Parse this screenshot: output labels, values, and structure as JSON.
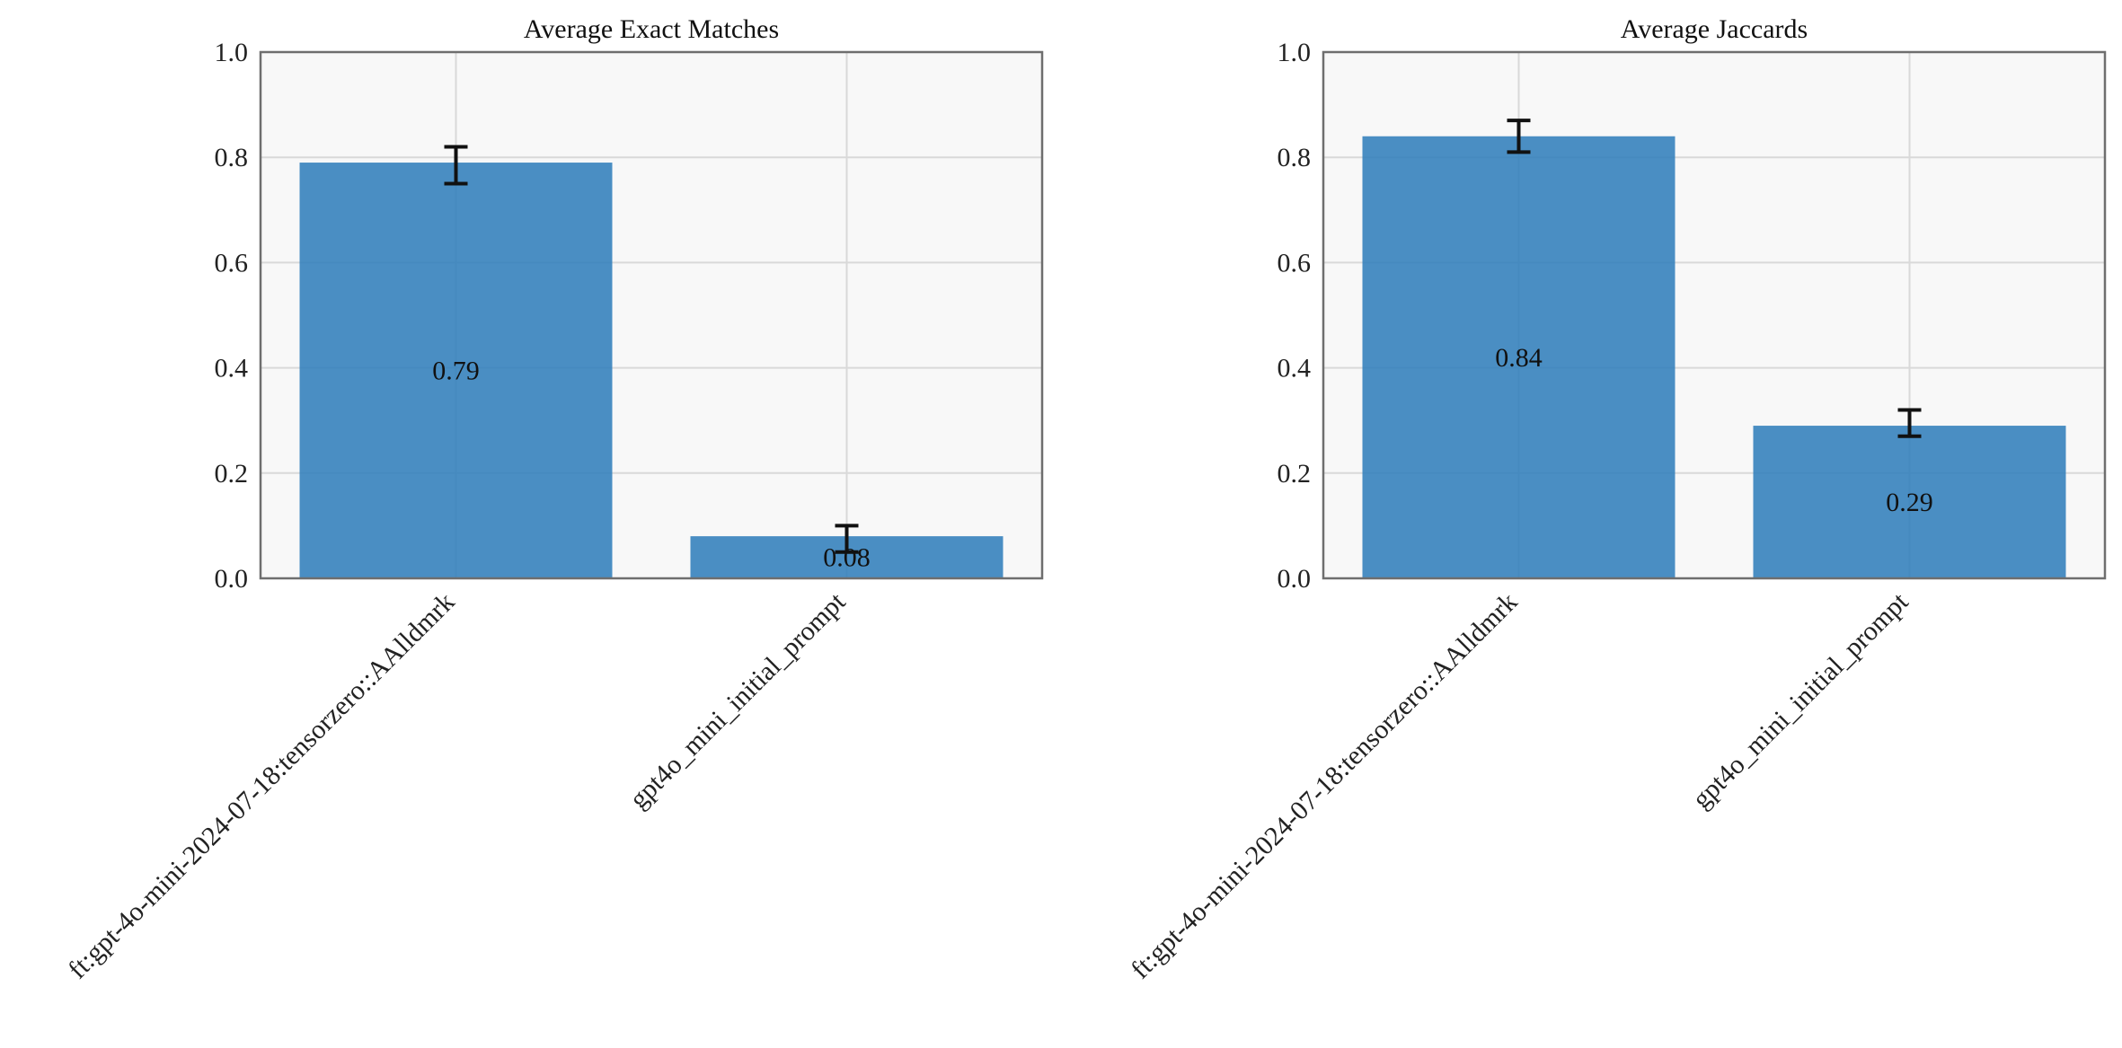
{
  "colors": {
    "bar": "#2b7bba",
    "plot_bg": "#f8f8f8",
    "grid": "#d9d9d9",
    "frame": "#6e6e6e",
    "errorbar": "#111111"
  },
  "chart_data": [
    {
      "type": "bar",
      "title": "Average Exact Matches",
      "categories": [
        "ft:gpt-4o-mini-2024-07-18:tensorzero::AAlldmrk",
        "gpt4o_mini_initial_prompt"
      ],
      "values": [
        0.79,
        0.08
      ],
      "error_low": [
        0.75,
        0.05
      ],
      "error_high": [
        0.82,
        0.1
      ],
      "data_labels": [
        "0.79",
        "0.08"
      ],
      "ylim": [
        0,
        1.0
      ],
      "yticks": [
        "0.0",
        "0.2",
        "0.4",
        "0.6",
        "0.8",
        "1.0"
      ],
      "grid": true
    },
    {
      "type": "bar",
      "title": "Average Jaccards",
      "categories": [
        "ft:gpt-4o-mini-2024-07-18:tensorzero::AAlldmrk",
        "gpt4o_mini_initial_prompt"
      ],
      "values": [
        0.84,
        0.29
      ],
      "error_low": [
        0.81,
        0.27
      ],
      "error_high": [
        0.87,
        0.32
      ],
      "data_labels": [
        "0.84",
        "0.29"
      ],
      "ylim": [
        0,
        1.0
      ],
      "yticks": [
        "0.0",
        "0.2",
        "0.4",
        "0.6",
        "0.8",
        "1.0"
      ],
      "grid": true
    }
  ]
}
